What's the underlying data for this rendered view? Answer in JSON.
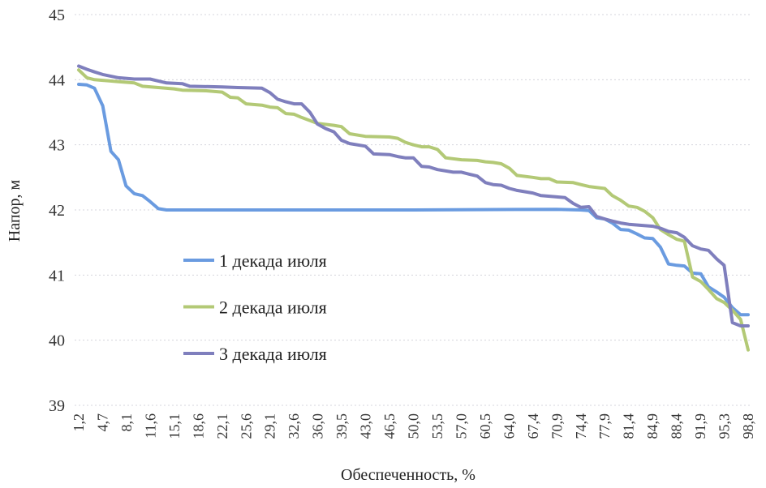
{
  "chart_data": {
    "type": "line",
    "title": "",
    "xlabel": "Обеспеченность, %",
    "ylabel": "Напор, м",
    "ylim": [
      39,
      45
    ],
    "yticks": [
      "39",
      "40",
      "41",
      "42",
      "43",
      "44",
      "45"
    ],
    "xlim": [
      1.2,
      98.8
    ],
    "xticks": [
      "1,2",
      "4,7",
      "8,1",
      "11,6",
      "15,1",
      "18,6",
      "22,1",
      "25,6",
      "29,1",
      "32,6",
      "36,0",
      "39,5",
      "43,0",
      "46,5",
      "50,0",
      "53,5",
      "57,0",
      "60,5",
      "64,0",
      "67,4",
      "70,9",
      "74,4",
      "77,9",
      "81,4",
      "84,9",
      "88,4",
      "91,9",
      "95,3",
      "98,8"
    ],
    "grid": true,
    "legend_position": "center-left",
    "series": [
      {
        "name": "1 декада июля",
        "color": "#6a9be0",
        "points": [
          [
            1.2,
            43.93
          ],
          [
            2.4,
            43.92
          ],
          [
            3.5,
            43.87
          ],
          [
            4.7,
            43.6
          ],
          [
            5.9,
            42.9
          ],
          [
            7.0,
            42.77
          ],
          [
            8.1,
            42.37
          ],
          [
            9.3,
            42.25
          ],
          [
            10.5,
            42.22
          ],
          [
            11.6,
            42.13
          ],
          [
            12.8,
            42.02
          ],
          [
            14.0,
            42.0
          ],
          [
            30.0,
            42.0
          ],
          [
            50.0,
            42.0
          ],
          [
            70.9,
            42.01
          ],
          [
            74.4,
            42.0
          ],
          [
            75.6,
            41.99
          ],
          [
            76.7,
            41.88
          ],
          [
            77.9,
            41.86
          ],
          [
            79.0,
            41.8
          ],
          [
            80.2,
            41.7
          ],
          [
            81.4,
            41.69
          ],
          [
            82.6,
            41.63
          ],
          [
            83.7,
            41.57
          ],
          [
            84.9,
            41.56
          ],
          [
            86.0,
            41.43
          ],
          [
            87.2,
            41.17
          ],
          [
            88.4,
            41.15
          ],
          [
            89.5,
            41.14
          ],
          [
            90.7,
            41.03
          ],
          [
            91.9,
            41.02
          ],
          [
            93.0,
            40.82
          ],
          [
            94.2,
            40.74
          ],
          [
            95.3,
            40.66
          ],
          [
            96.5,
            40.5
          ],
          [
            97.7,
            40.39
          ],
          [
            98.8,
            40.39
          ]
        ]
      },
      {
        "name": "2 декада июля",
        "color": "#b3c976",
        "points": [
          [
            1.2,
            44.15
          ],
          [
            2.4,
            44.03
          ],
          [
            3.5,
            44.0
          ],
          [
            4.7,
            43.99
          ],
          [
            7.0,
            43.97
          ],
          [
            9.3,
            43.95
          ],
          [
            10.5,
            43.9
          ],
          [
            12.8,
            43.88
          ],
          [
            15.1,
            43.86
          ],
          [
            16.3,
            43.84
          ],
          [
            19.8,
            43.83
          ],
          [
            22.1,
            43.81
          ],
          [
            23.3,
            43.73
          ],
          [
            24.4,
            43.72
          ],
          [
            25.6,
            43.63
          ],
          [
            27.9,
            43.61
          ],
          [
            29.1,
            43.58
          ],
          [
            30.2,
            43.57
          ],
          [
            31.4,
            43.48
          ],
          [
            32.6,
            43.47
          ],
          [
            33.7,
            43.42
          ],
          [
            36.0,
            43.33
          ],
          [
            38.4,
            43.3
          ],
          [
            39.5,
            43.28
          ],
          [
            40.7,
            43.17
          ],
          [
            43.0,
            43.13
          ],
          [
            46.5,
            43.12
          ],
          [
            47.7,
            43.1
          ],
          [
            48.8,
            43.04
          ],
          [
            50.0,
            43.0
          ],
          [
            51.2,
            42.97
          ],
          [
            52.3,
            42.97
          ],
          [
            53.5,
            42.93
          ],
          [
            54.7,
            42.8
          ],
          [
            57.0,
            42.77
          ],
          [
            59.3,
            42.76
          ],
          [
            60.5,
            42.74
          ],
          [
            61.6,
            42.73
          ],
          [
            62.8,
            42.71
          ],
          [
            64.0,
            42.64
          ],
          [
            65.1,
            42.53
          ],
          [
            67.4,
            42.5
          ],
          [
            68.6,
            42.48
          ],
          [
            69.8,
            42.48
          ],
          [
            70.9,
            42.43
          ],
          [
            73.3,
            42.42
          ],
          [
            74.4,
            42.39
          ],
          [
            75.6,
            42.36
          ],
          [
            77.9,
            42.33
          ],
          [
            79.0,
            42.22
          ],
          [
            80.2,
            42.15
          ],
          [
            81.4,
            42.06
          ],
          [
            82.6,
            42.04
          ],
          [
            83.7,
            41.98
          ],
          [
            84.9,
            41.88
          ],
          [
            86.0,
            41.7
          ],
          [
            87.2,
            41.62
          ],
          [
            88.4,
            41.55
          ],
          [
            89.5,
            41.52
          ],
          [
            90.7,
            40.97
          ],
          [
            91.9,
            40.9
          ],
          [
            93.0,
            40.78
          ],
          [
            94.2,
            40.64
          ],
          [
            95.3,
            40.58
          ],
          [
            96.5,
            40.46
          ],
          [
            97.7,
            40.32
          ],
          [
            98.8,
            39.85
          ]
        ]
      },
      {
        "name": "3 декада июля",
        "color": "#7f7fbd",
        "points": [
          [
            1.2,
            44.21
          ],
          [
            2.4,
            44.16
          ],
          [
            3.5,
            44.12
          ],
          [
            4.7,
            44.08
          ],
          [
            7.0,
            44.03
          ],
          [
            9.3,
            44.01
          ],
          [
            11.6,
            44.01
          ],
          [
            12.8,
            43.98
          ],
          [
            14.0,
            43.95
          ],
          [
            16.3,
            43.94
          ],
          [
            17.4,
            43.9
          ],
          [
            22.1,
            43.89
          ],
          [
            24.4,
            43.88
          ],
          [
            27.9,
            43.87
          ],
          [
            29.1,
            43.8
          ],
          [
            30.2,
            43.7
          ],
          [
            31.4,
            43.66
          ],
          [
            32.6,
            43.63
          ],
          [
            33.7,
            43.63
          ],
          [
            34.9,
            43.5
          ],
          [
            36.0,
            43.32
          ],
          [
            37.2,
            43.25
          ],
          [
            38.4,
            43.2
          ],
          [
            39.5,
            43.07
          ],
          [
            40.7,
            43.02
          ],
          [
            43.0,
            42.98
          ],
          [
            44.2,
            42.86
          ],
          [
            46.5,
            42.85
          ],
          [
            47.7,
            42.82
          ],
          [
            48.8,
            42.8
          ],
          [
            50.0,
            42.8
          ],
          [
            51.2,
            42.67
          ],
          [
            52.3,
            42.66
          ],
          [
            53.5,
            42.62
          ],
          [
            55.8,
            42.58
          ],
          [
            57.0,
            42.58
          ],
          [
            58.1,
            42.55
          ],
          [
            59.3,
            42.52
          ],
          [
            60.5,
            42.42
          ],
          [
            61.6,
            42.39
          ],
          [
            62.8,
            42.38
          ],
          [
            64.0,
            42.33
          ],
          [
            65.1,
            42.3
          ],
          [
            67.4,
            42.26
          ],
          [
            68.6,
            42.22
          ],
          [
            70.9,
            42.2
          ],
          [
            72.1,
            42.19
          ],
          [
            73.3,
            42.1
          ],
          [
            74.4,
            42.04
          ],
          [
            75.6,
            42.05
          ],
          [
            76.7,
            41.9
          ],
          [
            77.9,
            41.86
          ],
          [
            79.0,
            41.83
          ],
          [
            80.2,
            41.8
          ],
          [
            81.4,
            41.78
          ],
          [
            84.9,
            41.75
          ],
          [
            86.0,
            41.72
          ],
          [
            87.2,
            41.67
          ],
          [
            88.4,
            41.65
          ],
          [
            89.5,
            41.58
          ],
          [
            90.7,
            41.45
          ],
          [
            91.9,
            41.4
          ],
          [
            93.0,
            41.38
          ],
          [
            94.2,
            41.25
          ],
          [
            95.3,
            41.15
          ],
          [
            96.5,
            40.27
          ],
          [
            97.7,
            40.22
          ],
          [
            98.8,
            40.22
          ]
        ]
      }
    ]
  }
}
